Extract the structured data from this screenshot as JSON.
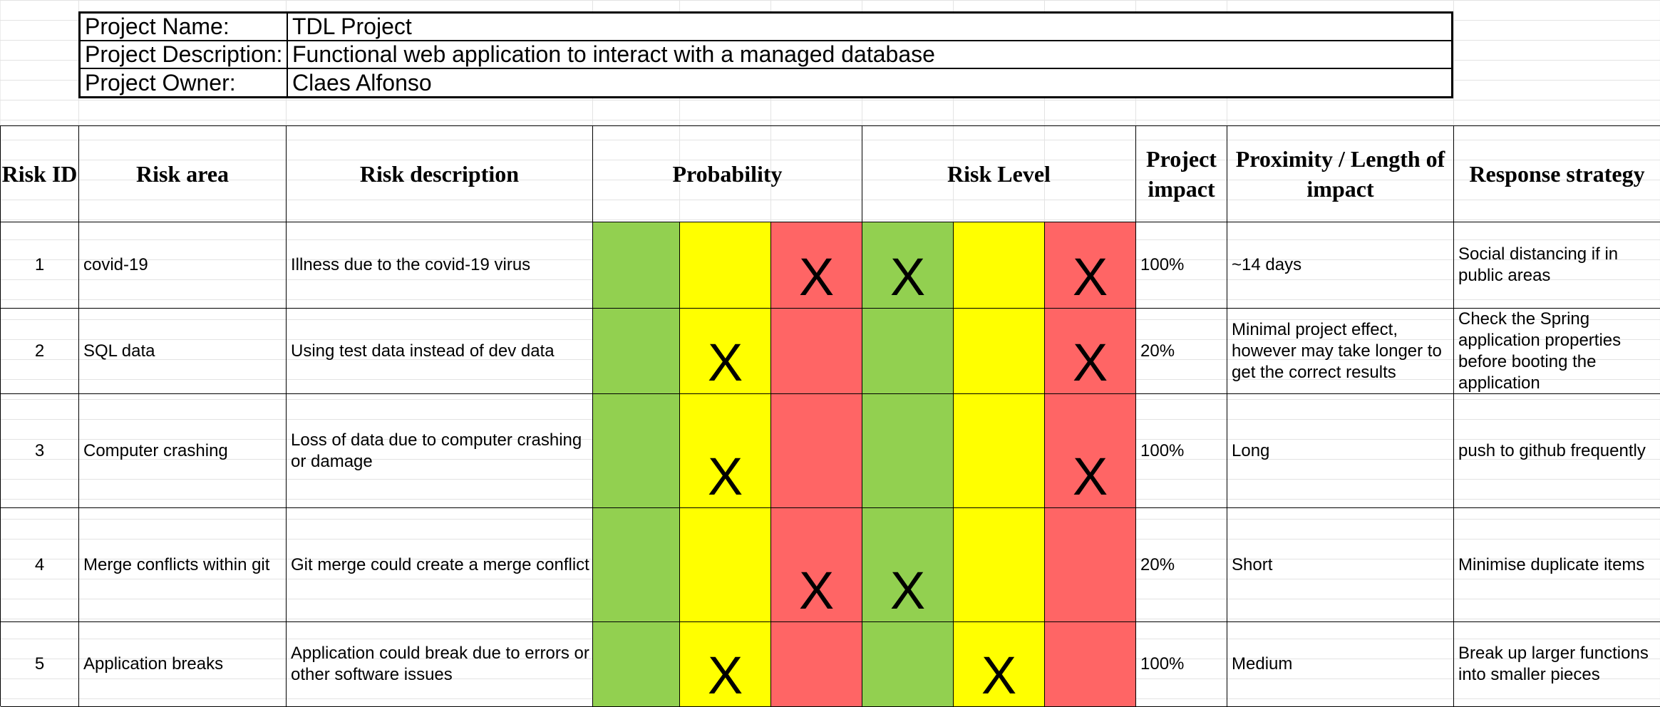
{
  "project": {
    "name_label": "Project Name:",
    "name": "TDL Project",
    "description_label": "Project Description:",
    "description": "Functional web application to interact with a managed database",
    "owner_label": "Project Owner:",
    "owner": "Claes Alfonso"
  },
  "table": {
    "headers": {
      "risk_id": "Risk ID",
      "risk_area": "Risk area",
      "risk_description": "Risk description",
      "probability": "Probability",
      "risk_level": "Risk Level",
      "project_impact": "Project impact",
      "proximity": "Proximity / Length of impact",
      "response_strategy": "Response strategy"
    },
    "scale_colors": [
      "#92d050",
      "#ffff00",
      "#ff6565"
    ],
    "mark": "X",
    "rows": [
      {
        "id": "1",
        "area": "covid-19",
        "description": "Illness due to the covid-19 virus",
        "probability": "high",
        "risk_level_marks": [
          "low",
          "high"
        ],
        "impact": "100%",
        "proximity": "~14 days",
        "response": "Social distancing if in public areas"
      },
      {
        "id": "2",
        "area": "SQL data",
        "description": "Using test data instead of dev data",
        "probability": "medium",
        "risk_level_marks": [
          "high"
        ],
        "impact": "20%",
        "proximity": "Minimal project effect, however may take longer to get the correct results",
        "response": "Check the Spring application properties before booting the application"
      },
      {
        "id": "3",
        "area": "Computer crashing",
        "description": "Loss of data due to computer crashing or damage",
        "probability": "medium",
        "risk_level_marks": [
          "high"
        ],
        "impact": "100%",
        "proximity": "Long",
        "response": "push to github frequently"
      },
      {
        "id": "4",
        "area": "Merge conflicts within git",
        "description": "Git merge could create a merge conflict",
        "probability": "high",
        "risk_level_marks": [
          "low"
        ],
        "impact": "20%",
        "proximity": "Short",
        "response": "Minimise duplicate items"
      },
      {
        "id": "5",
        "area": "Application breaks",
        "description": "Application could break due to errors or other software issues",
        "probability": "medium",
        "risk_level_marks": [
          "medium"
        ],
        "impact": "100%",
        "proximity": "Medium",
        "response": "Break up larger functions into smaller pieces"
      }
    ]
  }
}
